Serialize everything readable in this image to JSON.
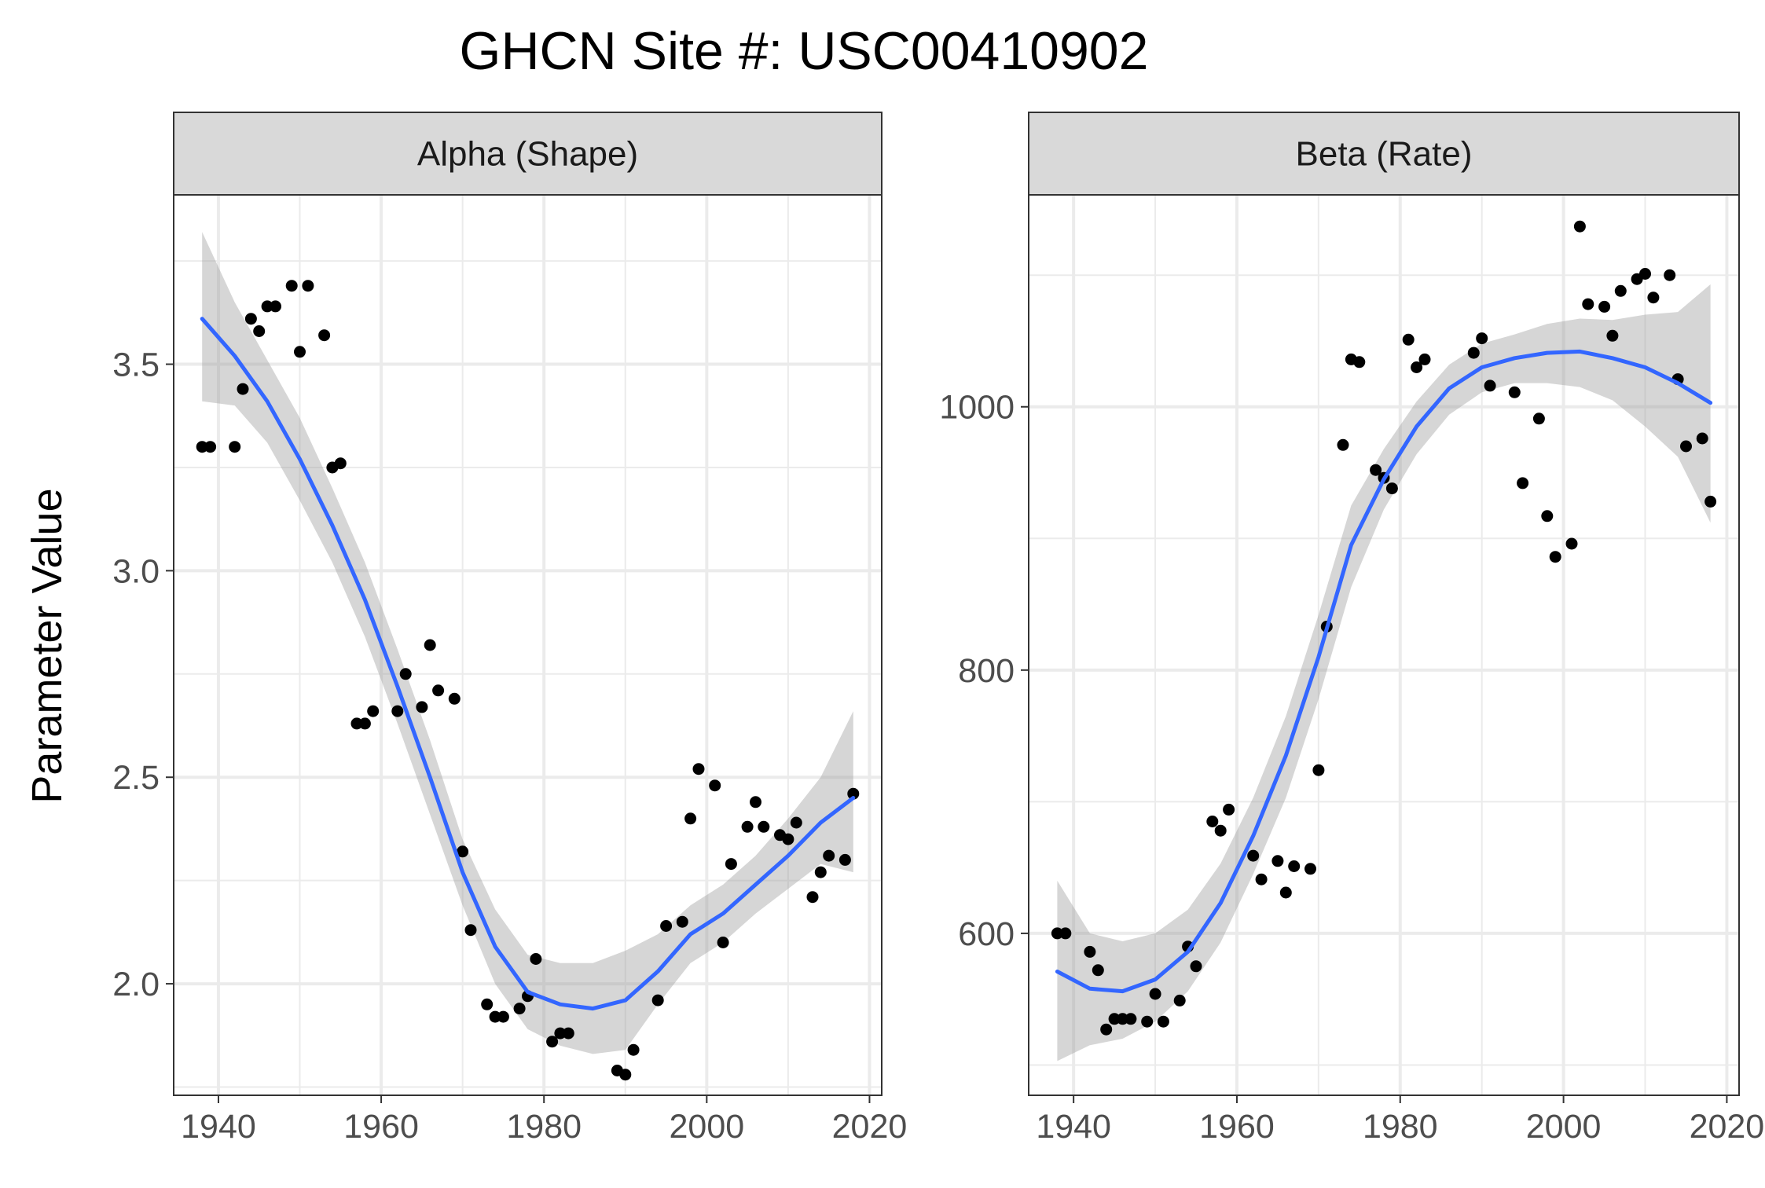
{
  "title": "GHCN Site #: USC00410902",
  "ylabel": "Parameter Value",
  "colors": {
    "smooth_line": "#3366FF",
    "ribbon": "#999999",
    "points": "#000000",
    "strip_fill": "#D9D9D9",
    "grid": "#EBEBEB",
    "panel_border": "#333333"
  },
  "chart_data": [
    {
      "type": "scatter",
      "panel": "Alpha (Shape)",
      "xlim": [
        1934.5,
        2021.5
      ],
      "ylim": [
        1.73,
        3.91
      ],
      "x_ticks": [
        1940,
        1960,
        1980,
        2000,
        2020
      ],
      "x_tick_labels": [
        "1940",
        "1960",
        "1980",
        "2000",
        "2020"
      ],
      "y_ticks": [
        2.0,
        2.5,
        3.0,
        3.5
      ],
      "y_tick_labels": [
        "2.0",
        "2.5",
        "3.0",
        "3.5"
      ],
      "grid": true,
      "points": [
        [
          1938,
          3.3
        ],
        [
          1939,
          3.3
        ],
        [
          1942,
          3.3
        ],
        [
          1943,
          3.44
        ],
        [
          1944,
          3.61
        ],
        [
          1945,
          3.58
        ],
        [
          1946,
          3.64
        ],
        [
          1947,
          3.64
        ],
        [
          1949,
          3.69
        ],
        [
          1950,
          3.53
        ],
        [
          1951,
          3.69
        ],
        [
          1953,
          3.57
        ],
        [
          1954,
          3.25
        ],
        [
          1955,
          3.26
        ],
        [
          1957,
          2.63
        ],
        [
          1958,
          2.63
        ],
        [
          1959,
          2.66
        ],
        [
          1962,
          2.66
        ],
        [
          1963,
          2.75
        ],
        [
          1965,
          2.67
        ],
        [
          1966,
          2.82
        ],
        [
          1967,
          2.71
        ],
        [
          1969,
          2.69
        ],
        [
          1970,
          2.32
        ],
        [
          1971,
          2.13
        ],
        [
          1973,
          1.95
        ],
        [
          1974,
          1.92
        ],
        [
          1975,
          1.92
        ],
        [
          1977,
          1.94
        ],
        [
          1978,
          1.97
        ],
        [
          1979,
          2.06
        ],
        [
          1981,
          1.86
        ],
        [
          1982,
          1.88
        ],
        [
          1983,
          1.88
        ],
        [
          1989,
          1.79
        ],
        [
          1990,
          1.78
        ],
        [
          1991,
          1.84
        ],
        [
          1994,
          1.96
        ],
        [
          1995,
          2.14
        ],
        [
          1997,
          2.15
        ],
        [
          1998,
          2.4
        ],
        [
          1999,
          2.52
        ],
        [
          2001,
          2.48
        ],
        [
          2002,
          2.1
        ],
        [
          2003,
          2.29
        ],
        [
          2005,
          2.38
        ],
        [
          2006,
          2.44
        ],
        [
          2007,
          2.38
        ],
        [
          2009,
          2.36
        ],
        [
          2010,
          2.35
        ],
        [
          2011,
          2.39
        ],
        [
          2013,
          2.21
        ],
        [
          2014,
          2.27
        ],
        [
          2015,
          2.31
        ],
        [
          2017,
          2.3
        ],
        [
          2018,
          2.46
        ]
      ],
      "smooth": {
        "x": [
          1938,
          1942,
          1946,
          1950,
          1954,
          1958,
          1962,
          1966,
          1970,
          1974,
          1978,
          1982,
          1986,
          1990,
          1994,
          1998,
          2002,
          2006,
          2010,
          2014,
          2018
        ],
        "y": [
          3.61,
          3.52,
          3.41,
          3.27,
          3.11,
          2.93,
          2.72,
          2.5,
          2.27,
          2.09,
          1.98,
          1.95,
          1.94,
          1.96,
          2.03,
          2.12,
          2.17,
          2.24,
          2.31,
          2.39,
          2.45
        ],
        "lower": [
          3.41,
          3.4,
          3.31,
          3.17,
          3.02,
          2.84,
          2.63,
          2.41,
          2.19,
          2.0,
          1.89,
          1.85,
          1.83,
          1.84,
          1.95,
          2.05,
          2.1,
          2.17,
          2.23,
          2.29,
          2.27
        ],
        "upper": [
          3.82,
          3.65,
          3.51,
          3.37,
          3.2,
          3.02,
          2.81,
          2.59,
          2.35,
          2.18,
          2.07,
          2.05,
          2.05,
          2.08,
          2.12,
          2.19,
          2.24,
          2.31,
          2.4,
          2.5,
          2.66
        ]
      }
    },
    {
      "type": "scatter",
      "panel": "Beta (Rate)",
      "xlim": [
        1934.5,
        2021.5
      ],
      "ylim": [
        477,
        1161
      ],
      "x_ticks": [
        1940,
        1960,
        1980,
        2000,
        2020
      ],
      "x_tick_labels": [
        "1940",
        "1960",
        "1980",
        "2000",
        "2020"
      ],
      "y_ticks": [
        600,
        800,
        1000
      ],
      "y_tick_labels": [
        "600",
        "800",
        "1000"
      ],
      "grid": true,
      "points": [
        [
          1938,
          600
        ],
        [
          1939,
          600
        ],
        [
          1942,
          586
        ],
        [
          1943,
          572
        ],
        [
          1944,
          527
        ],
        [
          1945,
          535
        ],
        [
          1946,
          535
        ],
        [
          1947,
          535
        ],
        [
          1949,
          533
        ],
        [
          1950,
          554
        ],
        [
          1951,
          533
        ],
        [
          1953,
          549
        ],
        [
          1954,
          590
        ],
        [
          1955,
          575
        ],
        [
          1957,
          685
        ],
        [
          1958,
          678
        ],
        [
          1959,
          694
        ],
        [
          1962,
          659
        ],
        [
          1963,
          641
        ],
        [
          1965,
          655
        ],
        [
          1966,
          631
        ],
        [
          1967,
          651
        ],
        [
          1969,
          649
        ],
        [
          1970,
          724
        ],
        [
          1971,
          833
        ],
        [
          1973,
          971
        ],
        [
          1974,
          1036
        ],
        [
          1975,
          1034
        ],
        [
          1977,
          952
        ],
        [
          1978,
          946
        ],
        [
          1979,
          938
        ],
        [
          1981,
          1051
        ],
        [
          1982,
          1030
        ],
        [
          1983,
          1036
        ],
        [
          1989,
          1041
        ],
        [
          1990,
          1052
        ],
        [
          1991,
          1016
        ],
        [
          1994,
          1011
        ],
        [
          1995,
          942
        ],
        [
          1997,
          991
        ],
        [
          1998,
          917
        ],
        [
          1999,
          886
        ],
        [
          2001,
          896
        ],
        [
          2002,
          1137
        ],
        [
          2003,
          1078
        ],
        [
          2005,
          1076
        ],
        [
          2006,
          1054
        ],
        [
          2007,
          1088
        ],
        [
          2009,
          1097
        ],
        [
          2010,
          1101
        ],
        [
          2011,
          1083
        ],
        [
          2013,
          1100
        ],
        [
          2014,
          1021
        ],
        [
          2015,
          970
        ],
        [
          2017,
          976
        ],
        [
          2018,
          928
        ]
      ],
      "smooth": {
        "x": [
          1938,
          1942,
          1946,
          1950,
          1954,
          1958,
          1962,
          1966,
          1970,
          1974,
          1978,
          1982,
          1986,
          1990,
          1994,
          1998,
          2002,
          2006,
          2010,
          2014,
          2018
        ],
        "y": [
          571,
          558,
          556,
          565,
          586,
          623,
          674,
          735,
          810,
          895,
          945,
          985,
          1014,
          1030,
          1037,
          1041,
          1042,
          1037,
          1030,
          1018,
          1003
        ],
        "lower": [
          503,
          515,
          520,
          533,
          556,
          593,
          645,
          703,
          778,
          863,
          922,
          964,
          994,
          1011,
          1018,
          1018,
          1015,
          1005,
          985,
          962,
          912
        ],
        "upper": [
          640,
          600,
          594,
          600,
          618,
          653,
          703,
          765,
          842,
          925,
          968,
          1004,
          1032,
          1048,
          1055,
          1063,
          1067,
          1066,
          1070,
          1072,
          1093
        ]
      }
    }
  ]
}
